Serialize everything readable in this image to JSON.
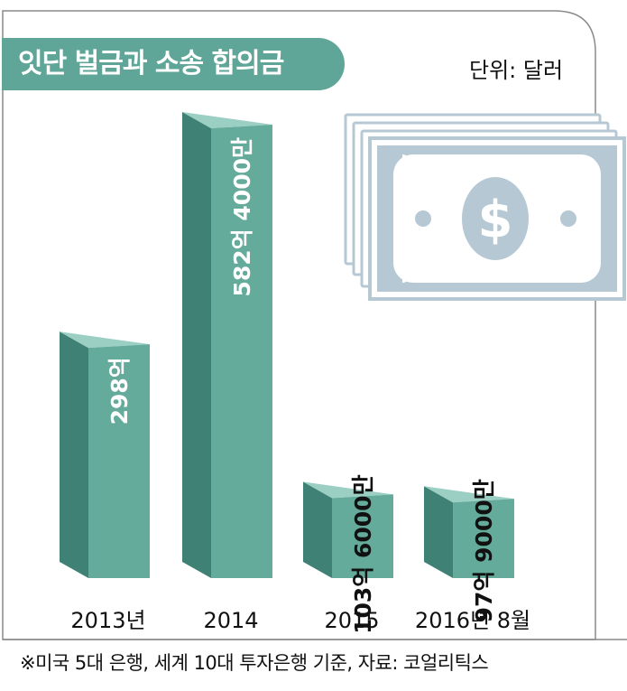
{
  "header": {
    "title": "잇단 벌금과 소송 합의금",
    "unit": "단위: 달러"
  },
  "footnote": "※미국 5대 은행, 세계 10대 투자은행 기준,   자료: 코얼리틱스",
  "colors": {
    "bar_front": "#64ab9c",
    "bar_side": "#3f8275",
    "bar_top": "#9ccfc3",
    "title_bg": "#5fa698",
    "money_icon": "#b5c8d3"
  },
  "decoration": {
    "icon": "dollar-bill-stack-icon"
  },
  "chart_data": {
    "type": "bar",
    "title": "잇단 벌금과 소송 합의금",
    "unit": "단위: 달러",
    "categories": [
      "2013년",
      "2014",
      "2015",
      "2016년 8월"
    ],
    "values": [
      29800000000,
      58240000000,
      10360000000,
      9790000000
    ],
    "value_labels": [
      "298억",
      "582억 4000만",
      "103억 6000만",
      "97억 9000만"
    ],
    "ylim": [
      0,
      58240000000
    ]
  }
}
